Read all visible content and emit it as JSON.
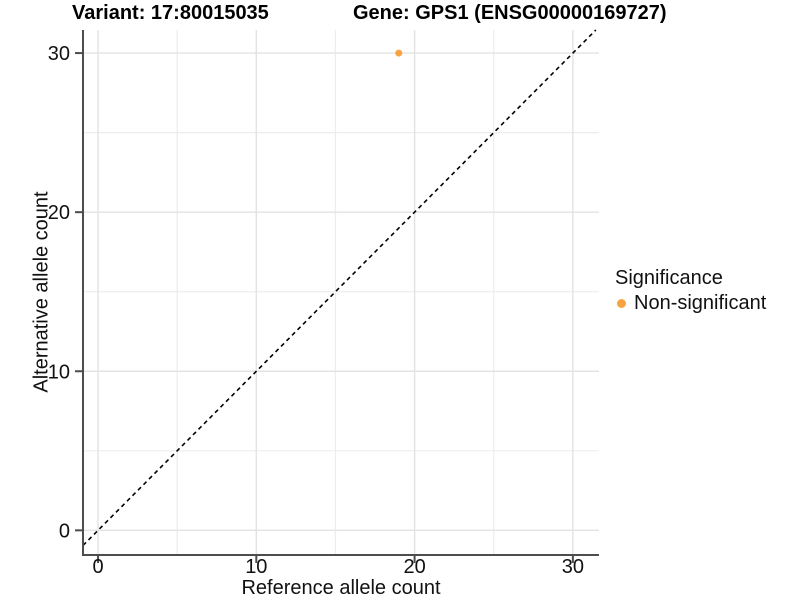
{
  "header": {
    "variant_title": "Variant: 17:80015035",
    "gene_title": "Gene: GPS1 (ENSG00000169727)"
  },
  "chart_data": {
    "type": "scatter",
    "xlabel": "Reference allele count",
    "ylabel": "Alternative allele count",
    "xlim": [
      -0.95,
      31.65
    ],
    "ylim": [
      -1.55,
      31.45
    ],
    "x_major_ticks": [
      0,
      10,
      20,
      30
    ],
    "x_minor_ticks": [
      5,
      15,
      25
    ],
    "y_major_ticks": [
      0,
      10,
      20,
      30
    ],
    "y_minor_ticks": [
      5,
      15,
      25
    ],
    "grid": true,
    "points": [
      {
        "x": 19,
        "y": 30,
        "series": "Non-significant"
      }
    ],
    "identity_line": {
      "style": "dashed",
      "color": "#000000"
    },
    "colors": {
      "major_grid": "#E3E3E3",
      "minor_grid": "#EDEDED",
      "axis": "#4D4D4D",
      "tick_text": "#111111"
    }
  },
  "legend": {
    "title": "Significance",
    "items": [
      {
        "label": "Non-significant",
        "color": "#F9A242"
      }
    ]
  }
}
